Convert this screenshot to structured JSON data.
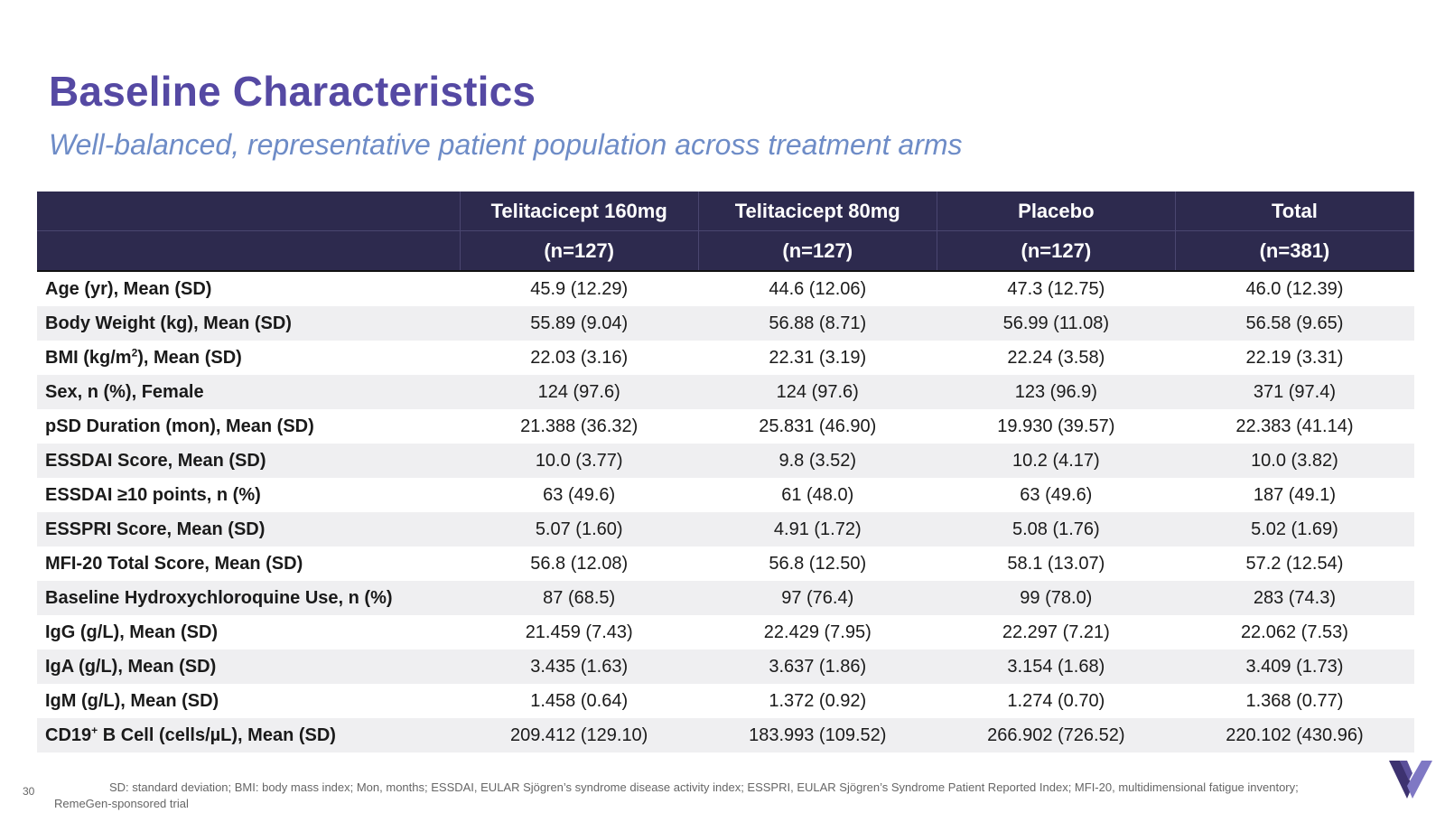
{
  "title": "Baseline Characteristics",
  "subtitle": "Well-balanced, representative patient population across treatment arms",
  "table": {
    "columns": [
      {
        "name": "Telitacicept 160mg",
        "n": "(n=127)"
      },
      {
        "name": "Telitacicept 80mg",
        "n": "(n=127)"
      },
      {
        "name": "Placebo",
        "n": "(n=127)"
      },
      {
        "name": "Total",
        "n": "(n=381)"
      }
    ],
    "rows": [
      {
        "label": "Age (yr), Mean (SD)",
        "values": [
          "45.9 (12.29)",
          "44.6 (12.06)",
          "47.3 (12.75)",
          "46.0 (12.39)"
        ]
      },
      {
        "label": "Body Weight (kg), Mean (SD)",
        "values": [
          "55.89 (9.04)",
          "56.88 (8.71)",
          "56.99 (11.08)",
          "56.58 (9.65)"
        ]
      },
      {
        "label_pre": "BMI (kg/m",
        "label_sup": "2",
        "label_post": "), Mean (SD)",
        "values": [
          "22.03 (3.16)",
          "22.31 (3.19)",
          "22.24 (3.58)",
          "22.19 (3.31)"
        ]
      },
      {
        "label": "Sex, n (%), Female",
        "values": [
          "124 (97.6)",
          "124 (97.6)",
          "123 (96.9)",
          "371 (97.4)"
        ]
      },
      {
        "label": "pSD Duration (mon), Mean (SD)",
        "values": [
          "21.388 (36.32)",
          "25.831 (46.90)",
          "19.930 (39.57)",
          "22.383 (41.14)"
        ]
      },
      {
        "label": "ESSDAI Score, Mean (SD)",
        "values": [
          "10.0 (3.77)",
          "9.8 (3.52)",
          "10.2 (4.17)",
          "10.0 (3.82)"
        ]
      },
      {
        "label": "ESSDAI ≥10 points, n (%)",
        "values": [
          "63 (49.6)",
          "61 (48.0)",
          "63 (49.6)",
          "187 (49.1)"
        ]
      },
      {
        "label": "ESSPRI Score, Mean (SD)",
        "values": [
          "5.07 (1.60)",
          "4.91 (1.72)",
          "5.08 (1.76)",
          "5.02 (1.69)"
        ]
      },
      {
        "label": "MFI-20 Total Score, Mean (SD)",
        "values": [
          "56.8 (12.08)",
          "56.8 (12.50)",
          "58.1 (13.07)",
          "57.2 (12.54)"
        ]
      },
      {
        "label": "Baseline Hydroxychloroquine Use, n (%)",
        "values": [
          "87 (68.5)",
          "97 (76.4)",
          "99 (78.0)",
          "283 (74.3)"
        ]
      },
      {
        "label": "IgG (g/L), Mean (SD)",
        "values": [
          "21.459 (7.43)",
          "22.429 (7.95)",
          "22.297 (7.21)",
          "22.062 (7.53)"
        ]
      },
      {
        "label": "IgA (g/L), Mean (SD)",
        "values": [
          "3.435 (1.63)",
          "3.637 (1.86)",
          "3.154 (1.68)",
          "3.409 (1.73)"
        ]
      },
      {
        "label": "IgM (g/L), Mean (SD)",
        "values": [
          "1.458 (0.64)",
          "1.372 (0.92)",
          "1.274 (0.70)",
          "1.368 (0.77)"
        ]
      },
      {
        "label_pre": "CD19",
        "label_sup": "+",
        "label_post": " B Cell (cells/µL), Mean (SD)",
        "values": [
          "209.412 (129.10)",
          "183.993 (109.52)",
          "266.902 (726.52)",
          "220.102 (430.96)"
        ]
      }
    ]
  },
  "page_number": "30",
  "footnote": "SD: standard deviation; BMI: body mass index; Mon, months; ESSDAI, EULAR Sjögren’s syndrome disease activity index; ESSPRI, EULAR Sjögren’s Syndrome Patient Reported Index; MFI-20, multidimensional fatigue inventory; RemeGen-sponsored trial",
  "colors": {
    "title": "#5549a3",
    "subtitle": "#6e8cc7",
    "header_bg": "#2d2a4e",
    "stripe": "#efeff1",
    "logo_dark": "#3d3270",
    "logo_light": "#7f78c4"
  },
  "logo": {
    "icon": "v-logo-icon"
  }
}
